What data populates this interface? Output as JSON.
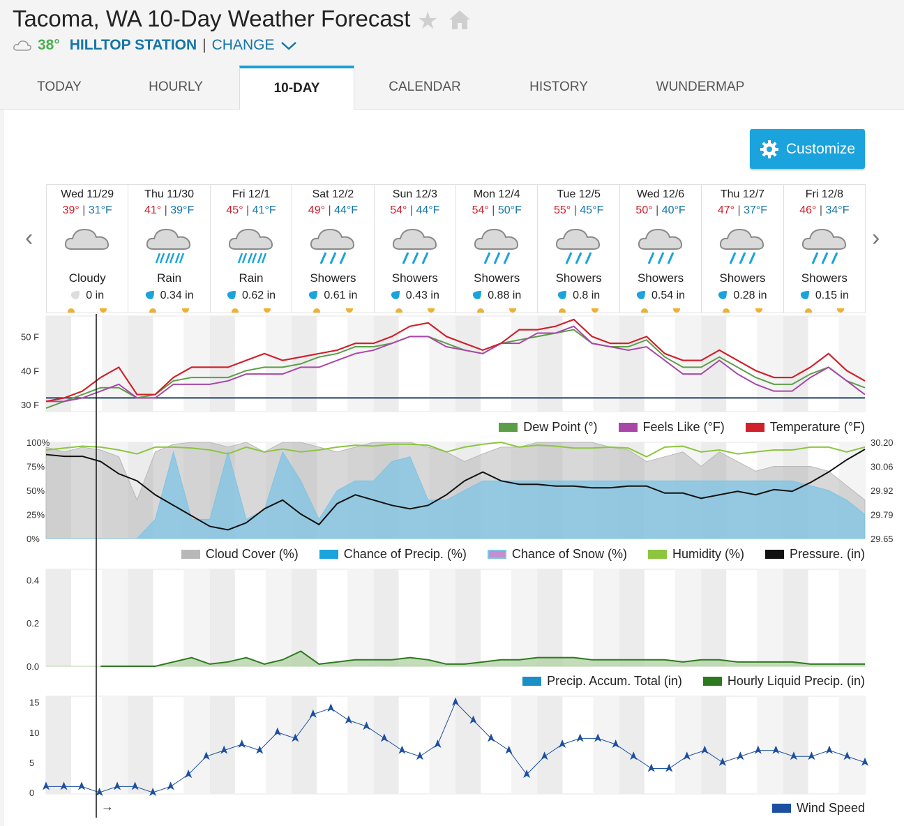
{
  "header": {
    "title": "Tacoma, WA 10-Day Weather Forecast",
    "current_temp": "38°",
    "station": "HILLTOP STATION",
    "separator": "|",
    "change_label": "CHANGE"
  },
  "tabs": [
    "TODAY",
    "HOURLY",
    "10-DAY",
    "CALENDAR",
    "HISTORY",
    "WUNDERMAP"
  ],
  "customize_label": "Customize",
  "days": [
    {
      "name": "Wed 11/29",
      "hi": "39°",
      "lo": "31°F",
      "cond": "Cloudy",
      "precip": "0 in",
      "icon": "cloudy"
    },
    {
      "name": "Thu 11/30",
      "hi": "41°",
      "lo": "39°F",
      "cond": "Rain",
      "precip": "0.34 in",
      "icon": "rain"
    },
    {
      "name": "Fri 12/1",
      "hi": "45°",
      "lo": "41°F",
      "cond": "Rain",
      "precip": "0.62 in",
      "icon": "rain"
    },
    {
      "name": "Sat 12/2",
      "hi": "49°",
      "lo": "44°F",
      "cond": "Showers",
      "precip": "0.61 in",
      "icon": "showers"
    },
    {
      "name": "Sun 12/3",
      "hi": "54°",
      "lo": "44°F",
      "cond": "Showers",
      "precip": "0.43 in",
      "icon": "showers"
    },
    {
      "name": "Mon 12/4",
      "hi": "54°",
      "lo": "50°F",
      "cond": "Showers",
      "precip": "0.88 in",
      "icon": "showers"
    },
    {
      "name": "Tue 12/5",
      "hi": "55°",
      "lo": "45°F",
      "cond": "Showers",
      "precip": "0.8 in",
      "icon": "showers"
    },
    {
      "name": "Wed 12/6",
      "hi": "50°",
      "lo": "40°F",
      "cond": "Showers",
      "precip": "0.54 in",
      "icon": "showers"
    },
    {
      "name": "Thu 12/7",
      "hi": "47°",
      "lo": "37°F",
      "cond": "Showers",
      "precip": "0.28 in",
      "icon": "showers"
    },
    {
      "name": "Fri 12/8",
      "hi": "46°",
      "lo": "34°F",
      "cond": "Showers",
      "precip": "0.15 in",
      "icon": "showers"
    }
  ],
  "chart_data": [
    {
      "type": "line",
      "yticks": [
        "50 F",
        "40 F",
        "30 F"
      ],
      "ylim": [
        28,
        56
      ],
      "series": [
        {
          "name": "Temperature (°F)",
          "color": "#d0202c",
          "values": [
            31,
            32,
            34,
            38,
            41,
            33,
            33,
            38,
            41,
            41,
            41,
            43,
            45,
            43,
            44,
            45,
            46,
            48,
            48,
            50,
            53,
            54,
            50,
            48,
            46,
            48,
            52,
            52,
            53,
            55,
            50,
            48,
            48,
            50,
            45,
            43,
            43,
            46,
            43,
            40,
            38,
            38,
            41,
            45,
            40,
            37
          ]
        },
        {
          "name": "Feels Like (°F)",
          "color": "#a847a8",
          "values": [
            31,
            31,
            32,
            34,
            36,
            32,
            32,
            36,
            36,
            36,
            37,
            39,
            39,
            39,
            41,
            41,
            43,
            45,
            46,
            48,
            50,
            50,
            47,
            46,
            45,
            48,
            48,
            51,
            51,
            53,
            48,
            47,
            46,
            47,
            43,
            39,
            39,
            43,
            39,
            36,
            34,
            34,
            38,
            41,
            37,
            33
          ]
        },
        {
          "name": "Dew Point (°)",
          "color": "#5c9e48",
          "values": [
            29,
            31,
            33,
            35,
            35,
            32,
            33,
            37,
            38,
            38,
            38,
            40,
            41,
            41,
            42,
            44,
            45,
            47,
            47,
            48,
            50,
            50,
            48,
            46,
            45,
            48,
            49,
            50,
            51,
            52,
            48,
            47,
            47,
            49,
            44,
            41,
            41,
            44,
            41,
            38,
            36,
            36,
            39,
            41,
            37,
            35
          ]
        }
      ],
      "baseline": 32
    },
    {
      "type": "area",
      "yticks_left": [
        "100%",
        "75%",
        "50%",
        "25%",
        "0%"
      ],
      "yticks_right": [
        "30.20",
        "30.06",
        "29.92",
        "29.79",
        "29.65"
      ],
      "series": [
        {
          "name": "Cloud Cover (%)",
          "color": "#b8b8b8",
          "values": [
            95,
            90,
            95,
            92,
            85,
            40,
            90,
            98,
            100,
            100,
            95,
            100,
            90,
            100,
            100,
            95,
            90,
            95,
            100,
            100,
            100,
            95,
            90,
            80,
            88,
            95,
            95,
            100,
            100,
            100,
            100,
            95,
            92,
            80,
            85,
            90,
            75,
            90,
            80,
            70,
            75,
            75,
            75,
            70,
            55,
            40
          ]
        },
        {
          "name": "Chance of Precip. (%)",
          "color": "#7ec4e4",
          "values": [
            0,
            0,
            0,
            0,
            5,
            10,
            20,
            90,
            20,
            20,
            90,
            20,
            30,
            90,
            60,
            20,
            50,
            60,
            60,
            80,
            85,
            40,
            40,
            50,
            60,
            60,
            60,
            60,
            60,
            60,
            60,
            60,
            60,
            60,
            60,
            60,
            60,
            60,
            60,
            60,
            60,
            60,
            55,
            50,
            40,
            25
          ]
        },
        {
          "name": "Chance of Snow (%)",
          "color": "#c48ed0",
          "values": []
        },
        {
          "name": "Humidity (%)",
          "color": "#8cc63f",
          "values": [
            92,
            94,
            96,
            95,
            92,
            88,
            95,
            95,
            94,
            92,
            88,
            95,
            90,
            93,
            90,
            92,
            95,
            97,
            96,
            98,
            98,
            97,
            90,
            95,
            98,
            100,
            95,
            97,
            96,
            94,
            94,
            95,
            94,
            85,
            95,
            96,
            90,
            92,
            88,
            90,
            92,
            92,
            95,
            95,
            90,
            95
          ]
        },
        {
          "name": "Pressure. (in)",
          "color": "#111111",
          "values": [
            30.13,
            30.12,
            30.12,
            30.09,
            30.02,
            29.98,
            29.9,
            29.84,
            29.78,
            29.72,
            29.7,
            29.74,
            29.82,
            29.87,
            29.79,
            29.73,
            29.85,
            29.9,
            29.87,
            29.84,
            29.82,
            29.84,
            29.9,
            29.98,
            30.03,
            29.98,
            29.96,
            29.96,
            29.95,
            29.95,
            29.94,
            29.94,
            29.95,
            29.95,
            29.91,
            29.91,
            29.88,
            29.9,
            29.92,
            29.9,
            29.93,
            29.92,
            29.97,
            30.03,
            30.1,
            30.16
          ]
        }
      ]
    },
    {
      "type": "area",
      "yticks": [
        "0.4",
        "0.2",
        "0.0"
      ],
      "ylim": [
        0,
        0.45
      ],
      "series": [
        {
          "name": "Precip. Accum. Total (in)",
          "color": "#1b8ec6",
          "values": []
        },
        {
          "name": "Hourly Liquid Precip. (in)",
          "color": "#2d7a1e",
          "values": [
            0,
            0,
            0,
            0,
            0,
            0,
            0,
            0.02,
            0.04,
            0.01,
            0.02,
            0.04,
            0.01,
            0.03,
            0.07,
            0.01,
            0.02,
            0.03,
            0.03,
            0.03,
            0.04,
            0.03,
            0.01,
            0.01,
            0.02,
            0.03,
            0.03,
            0.04,
            0.04,
            0.04,
            0.03,
            0.03,
            0.03,
            0.03,
            0.03,
            0.02,
            0.03,
            0.03,
            0.02,
            0.02,
            0.02,
            0.02,
            0.01,
            0.01,
            0.01,
            0.01
          ]
        }
      ]
    },
    {
      "type": "line",
      "yticks": [
        "15",
        "10",
        "5",
        "0"
      ],
      "ylim": [
        0,
        16
      ],
      "series": [
        {
          "name": "Wind Speed",
          "color": "#1b4fa0",
          "values": [
            1,
            1,
            1,
            0,
            1,
            1,
            0,
            1,
            3,
            6,
            7,
            8,
            7,
            10,
            9,
            13,
            14,
            12,
            11,
            9,
            7,
            6,
            8,
            15,
            12,
            9,
            7,
            3,
            6,
            8,
            9,
            9,
            8,
            6,
            4,
            4,
            6,
            7,
            5,
            6,
            7,
            7,
            6,
            6,
            7,
            6,
            5
          ]
        }
      ]
    }
  ],
  "now_arrow": "→"
}
